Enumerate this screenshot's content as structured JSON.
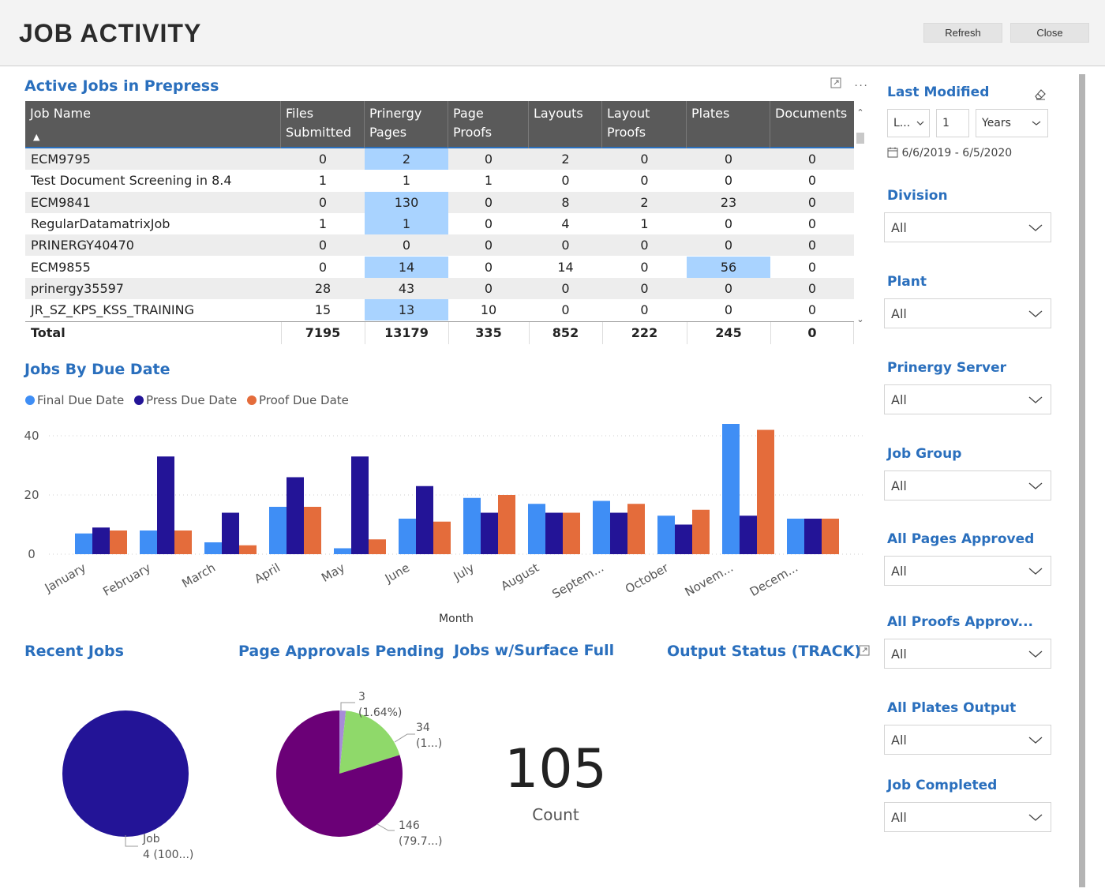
{
  "header": {
    "title": "JOB ACTIVITY",
    "refresh_label": "Refresh",
    "close_label": "Close"
  },
  "table": {
    "title": "Active Jobs in Prepress",
    "columns": [
      "Job Name",
      "Files Submitted",
      "Prinergy Pages",
      "Page Proofs",
      "Layouts",
      "Layout Proofs",
      "Plates",
      "Documents"
    ],
    "rows": [
      {
        "name": "ECM9795",
        "values": [
          "0",
          "2",
          "0",
          "2",
          "0",
          "0",
          "0"
        ]
      },
      {
        "name": "Test Document Screening in 8.4",
        "values": [
          "1",
          "1",
          "1",
          "0",
          "0",
          "0",
          "0"
        ]
      },
      {
        "name": "ECM9841",
        "values": [
          "0",
          "130",
          "0",
          "8",
          "2",
          "23",
          "0"
        ]
      },
      {
        "name": "RegularDatamatrixJob",
        "values": [
          "1",
          "1",
          "0",
          "4",
          "1",
          "0",
          "0"
        ]
      },
      {
        "name": "PRINERGY40470",
        "values": [
          "0",
          "0",
          "0",
          "0",
          "0",
          "0",
          "0"
        ]
      },
      {
        "name": "ECM9855",
        "values": [
          "0",
          "14",
          "0",
          "14",
          "0",
          "56",
          "0"
        ]
      },
      {
        "name": "prinergy35597",
        "values": [
          "28",
          "43",
          "0",
          "0",
          "0",
          "0",
          "0"
        ]
      },
      {
        "name": "JR_SZ_KPS_KSS_TRAINING",
        "values": [
          "15",
          "13",
          "10",
          "0",
          "0",
          "0",
          "0"
        ]
      }
    ],
    "total": {
      "name": "Total",
      "values": [
        "7195",
        "13179",
        "335",
        "852",
        "222",
        "245",
        "0"
      ]
    },
    "highlight_color": "#a9d3ff"
  },
  "chart_section": {
    "title": "Jobs By Due Date",
    "legend": [
      "Final Due Date",
      "Press Due Date",
      "Proof Due Date"
    ],
    "xlabel": "Month",
    "tick_labels": [
      "January",
      "February",
      "March",
      "April",
      "May",
      "June",
      "July",
      "August",
      "Septem...",
      "October",
      "Novem...",
      "Decem..."
    ],
    "y_ticks": [
      "0",
      "20",
      "40"
    ]
  },
  "chart_data": {
    "type": "bar",
    "categories": [
      "January",
      "February",
      "March",
      "April",
      "May",
      "June",
      "July",
      "August",
      "September",
      "October",
      "November",
      "December"
    ],
    "series": [
      {
        "name": "Final Due Date",
        "color": "#3f8ef5",
        "values": [
          7,
          8,
          4,
          16,
          2,
          12,
          19,
          17,
          18,
          13,
          44,
          12
        ]
      },
      {
        "name": "Press Due Date",
        "color": "#231497",
        "values": [
          9,
          33,
          14,
          26,
          33,
          23,
          14,
          14,
          14,
          10,
          13,
          12
        ]
      },
      {
        "name": "Proof Due Date",
        "color": "#e46c3b",
        "values": [
          8,
          8,
          3,
          16,
          5,
          11,
          20,
          14,
          17,
          15,
          42,
          12
        ]
      }
    ],
    "xlabel": "Month",
    "ylabel": "",
    "ylim": [
      0,
      44
    ],
    "grid": true,
    "legend_position": "top-left"
  },
  "bottom": {
    "recent_jobs_title": "Recent Jobs",
    "page_approvals_title": "Page Approvals Pending",
    "surface_full_title": "Jobs w/Surface Full",
    "output_status_title": "Output Status (TRACK)",
    "recent_pie": {
      "label": "Job",
      "value_label": "4 (100...)",
      "color": "#231497"
    },
    "approvals_pie": {
      "slices": [
        {
          "value": 3,
          "label": "3",
          "pct_label": "(1.64%)",
          "color": "#a78bd8"
        },
        {
          "value": 34,
          "label": "34",
          "pct_label": "(1...)",
          "color": "#8fd96a"
        },
        {
          "value": 146,
          "label": "146",
          "pct_label": "(79.7...)",
          "color": "#6b0077"
        }
      ]
    },
    "kpi": {
      "value": "105",
      "label": "Count"
    }
  },
  "filters": {
    "last_modified": {
      "title": "Last Modified",
      "period": "L...",
      "count": "1",
      "unit": "Years",
      "date_range": "6/6/2019 - 6/5/2020"
    },
    "dropdowns": [
      {
        "title": "Division",
        "value": "All"
      },
      {
        "title": "Plant",
        "value": "All"
      },
      {
        "title": "Prinergy Server",
        "value": "All"
      },
      {
        "title": "Job Group",
        "value": "All"
      },
      {
        "title": "All Pages Approved",
        "value": "All"
      },
      {
        "title": "All Proofs Approv...",
        "value": "All"
      },
      {
        "title": "All Plates Output",
        "value": "All"
      },
      {
        "title": "Job Completed",
        "value": "All"
      }
    ]
  }
}
